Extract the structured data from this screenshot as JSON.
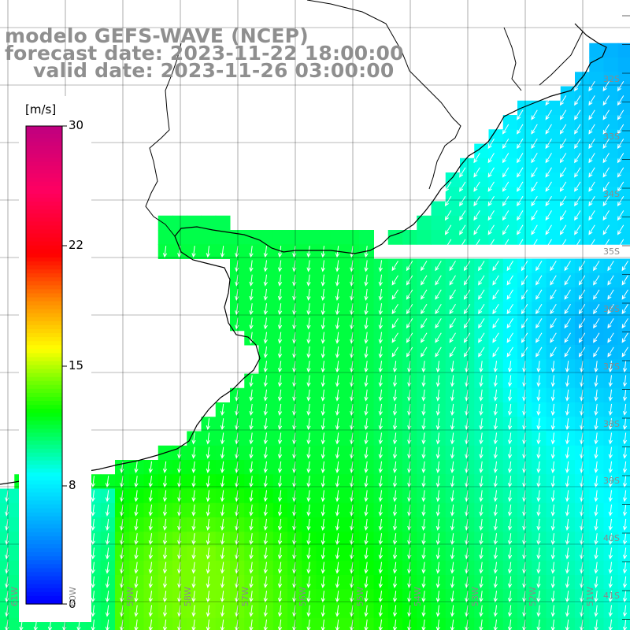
{
  "header": {
    "line1": "modelo GEFS-WAVE (NCEP)",
    "line2": "forecast date: 2023-11-22 18:00:00",
    "line3": "valid date: 2023-11-26 03:00:00"
  },
  "colorbar": {
    "unit": "[m/s]",
    "ticks": [
      "30",
      "22",
      "15",
      "8",
      "0"
    ],
    "colors": [
      "#0000ff",
      "#0070ff",
      "#00c8ff",
      "#00ffff",
      "#00ff7f",
      "#00ff00",
      "#5fff00",
      "#ffff00",
      "#ff8c00",
      "#ff0000",
      "#ff0060",
      "#c0007f"
    ]
  },
  "map": {
    "lat_labels": [
      "32S",
      "33S",
      "34S",
      "35S",
      "36S",
      "37S",
      "38S",
      "39S",
      "40S",
      "41S"
    ],
    "lon_labels": [
      "61W",
      "60W",
      "59W",
      "58W",
      "57W",
      "56W",
      "55W",
      "54W",
      "53W",
      "52W",
      "51W"
    ],
    "wind_direction": "south / south-west (arrows)",
    "land_color": "#ffffff",
    "coast_color": "#000000",
    "grid_color": "#000000"
  }
}
